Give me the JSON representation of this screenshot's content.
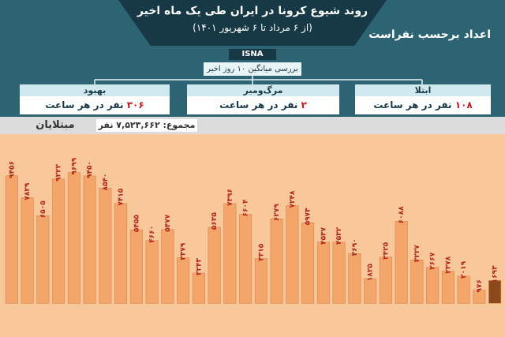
{
  "header": {
    "title": "روند شیوع کرونا در ایران طی یک ماه اخیر",
    "subtitle": "(از ۶ مرداد تا ۶ شهریور ۱۴۰۱)",
    "note": "اعداد برحسب نفراست",
    "logo": "ISNA"
  },
  "summary": {
    "title": "بررسی میانگین ۱۰ روز اخیر",
    "panels": [
      {
        "label": "بهبود",
        "number": "۳۰۶",
        "unit": "نفر در هر ساعت"
      },
      {
        "label": "مرگ‌ومیر",
        "number": "۲",
        "unit": "نفر در هر ساعت"
      },
      {
        "label": "ابتلا",
        "number": "۱۰۸",
        "unit": "نفر در هر ساعت"
      }
    ]
  },
  "chart_data": {
    "type": "bar",
    "title": "مبتلایان",
    "subtitle": "مجموع: ۷,۵۲۳,۶۶۲ نفر",
    "values": [
      9456,
      7829,
      6505,
      9222,
      9699,
      9450,
      8540,
      7415,
      5455,
      4660,
      5477,
      3379,
      2243,
      5635,
      7396,
      6604,
      3315,
      6279,
      7248,
      5973,
      4537,
      4532,
      3690,
      1825,
      3425,
      6088,
      3227,
      2667,
      2378,
      2019,
      976,
      1693
    ],
    "value_labels": [
      "۹۴۵۶",
      "۷۸۲۹",
      "۶۵۰۵",
      "۹۲۲۲",
      "۹۶۹۹",
      "۹۴۵۰",
      "۸۵۴۰",
      "۷۴۱۵",
      "۵۴۵۵",
      "۴۶۶۰",
      "۵۴۷۷",
      "۳۳۷۹",
      "۲۲۴۳",
      "۵۶۳۵",
      "۷۳۹۶",
      "۶۶۰۴",
      "۳۳۱۵",
      "۶۲۷۹",
      "۷۲۴۸",
      "۵۹۷۳",
      "۴۵۳۷",
      "۴۵۳۲",
      "۳۶۹۰",
      "۱۸۲۵",
      "۳۴۲۵",
      "۶۰۸۸",
      "۳۲۲۷",
      "۲۶۶۷",
      "۲۳۷۸",
      "۲۰۱۹",
      "۹۷۶",
      "۱۶۹۳"
    ],
    "colors": [
      "#f4a66a",
      "#f4a66a",
      "#f4a66a",
      "#f4a66a",
      "#f4a66a",
      "#f4a66a",
      "#f4a66a",
      "#f4a66a",
      "#f4a66a",
      "#f4a66a",
      "#f4a66a",
      "#f4a66a",
      "#f4a66a",
      "#f4a66a",
      "#f4a66a",
      "#f4a66a",
      "#f4a66a",
      "#f4a66a",
      "#f4a66a",
      "#f4a66a",
      "#f4a66a",
      "#f4a66a",
      "#f4a66a",
      "#f4a66a",
      "#f4a66a",
      "#f4a66a",
      "#f4a66a",
      "#f4a66a",
      "#f4a66a",
      "#f4a66a",
      "#f4a66a",
      "#8a4a1c"
    ],
    "label_color": "#b3261e",
    "ylim": [
      -2500,
      10500
    ]
  }
}
